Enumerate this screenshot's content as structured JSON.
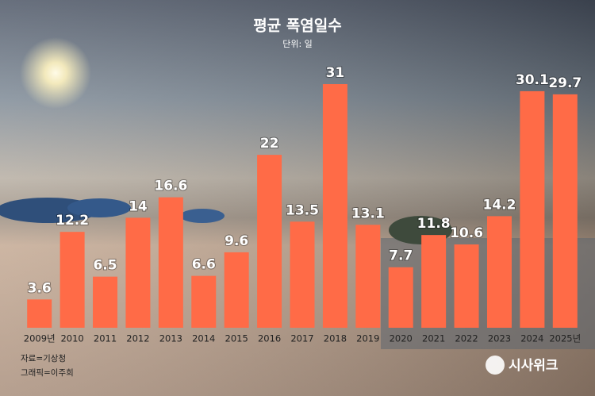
{
  "chart_data": {
    "type": "bar",
    "title": "평균 폭염일수",
    "subtitle": "단위: 일",
    "categories": [
      "2009년",
      "2010",
      "2011",
      "2012",
      "2013",
      "2014",
      "2015",
      "2016",
      "2017",
      "2018",
      "2019",
      "2020",
      "2021",
      "2022",
      "2023",
      "2024",
      "2025년"
    ],
    "values": [
      3.6,
      12.2,
      6.5,
      14,
      16.6,
      6.6,
      9.6,
      22,
      13.5,
      31,
      13.1,
      7.7,
      11.8,
      10.6,
      14.2,
      30.1,
      29.7
    ],
    "color": "#ff6b47",
    "ylim": [
      0,
      31
    ],
    "source": "자료=기상청",
    "credit": "그래픽=이주희",
    "logo": "시사위크"
  }
}
